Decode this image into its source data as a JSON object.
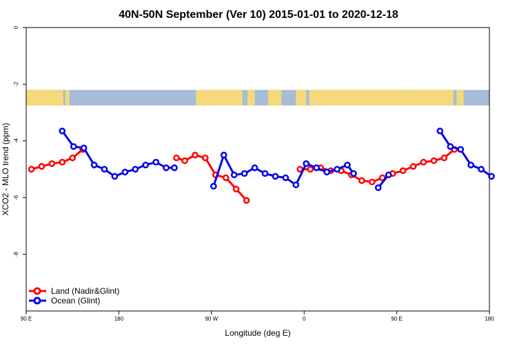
{
  "chart_data": {
    "type": "line",
    "title": "40N-50N September (Ver 10)   2015-01-01 to 2020-12-18",
    "xlabel": "Longitude (deg E)",
    "ylabel": "XCO2 - MLO trend (ppm)",
    "xlim": [
      90,
      540
    ],
    "ylim": [
      -10,
      0
    ],
    "x_ticks": [
      {
        "value": 90,
        "label": "90 E"
      },
      {
        "value": 180,
        "label": "180"
      },
      {
        "value": 270,
        "label": "90 W"
      },
      {
        "value": 360,
        "label": "0"
      },
      {
        "value": 450,
        "label": "90 E"
      },
      {
        "value": 540,
        "label": "180"
      }
    ],
    "y_ticks": [
      {
        "value": 0,
        "label": "0"
      },
      {
        "value": -2,
        "label": "-2"
      },
      {
        "value": -4,
        "label": "-4"
      },
      {
        "value": -6,
        "label": "-6"
      },
      {
        "value": -8,
        "label": "-8"
      }
    ],
    "map_strip": {
      "y_top": -2.2,
      "y_bottom": -2.75,
      "land_color": "#f5d97a",
      "ocean_color": "#a7bcd9"
    },
    "legend_position": "bottom-left",
    "series": [
      {
        "name": "Land (Nadir&Glint)",
        "color": "#ff0000",
        "segments": [
          [
            [
              95,
              -5.0
            ],
            [
              105,
              -4.9
            ],
            [
              115,
              -4.8
            ],
            [
              125,
              -4.75
            ],
            [
              135,
              -4.6
            ],
            [
              145,
              -4.3
            ]
          ],
          [
            [
              236,
              -4.6
            ],
            [
              244,
              -4.7
            ],
            [
              254,
              -4.5
            ],
            [
              264,
              -4.6
            ],
            [
              274,
              -5.2
            ],
            [
              284,
              -5.3
            ],
            [
              294,
              -5.7
            ],
            [
              304,
              -6.1
            ]
          ],
          [
            [
              356,
              -5.0
            ],
            [
              366,
              -5.0
            ],
            [
              376,
              -4.95
            ],
            [
              386,
              -5.05
            ],
            [
              396,
              -5.05
            ],
            [
              406,
              -5.2
            ],
            [
              416,
              -5.4
            ],
            [
              426,
              -5.45
            ],
            [
              436,
              -5.3
            ],
            [
              446,
              -5.15
            ],
            [
              456,
              -5.05
            ],
            [
              466,
              -4.9
            ],
            [
              476,
              -4.75
            ],
            [
              486,
              -4.7
            ],
            [
              496,
              -4.6
            ],
            [
              506,
              -4.3
            ]
          ]
        ]
      },
      {
        "name": "Ocean (Glint)",
        "color": "#0000ee",
        "segments": [
          [
            [
              125,
              -3.65
            ],
            [
              136,
              -4.2
            ],
            [
              146,
              -4.25
            ],
            [
              156,
              -4.85
            ],
            [
              166,
              -5.0
            ],
            [
              176,
              -5.25
            ],
            [
              186,
              -5.1
            ],
            [
              196,
              -5.0
            ],
            [
              206,
              -4.85
            ],
            [
              216,
              -4.75
            ],
            [
              226,
              -4.95
            ],
            [
              234,
              -4.95
            ]
          ],
          [
            [
              272,
              -5.6
            ],
            [
              282,
              -4.5
            ],
            [
              292,
              -5.2
            ],
            [
              302,
              -5.15
            ],
            [
              312,
              -4.95
            ],
            [
              322,
              -5.15
            ],
            [
              332,
              -5.25
            ],
            [
              342,
              -5.3
            ],
            [
              352,
              -5.55
            ],
            [
              362,
              -4.8
            ],
            [
              372,
              -4.95
            ],
            [
              382,
              -5.1
            ],
            [
              392,
              -5.0
            ],
            [
              402,
              -4.85
            ],
            [
              408,
              -5.15
            ]
          ],
          [
            [
              432,
              -5.65
            ],
            [
              442,
              -5.2
            ]
          ],
          [
            [
              492,
              -3.65
            ],
            [
              502,
              -4.2
            ],
            [
              512,
              -4.3
            ],
            [
              522,
              -4.85
            ],
            [
              532,
              -5.0
            ],
            [
              542,
              -5.25
            ]
          ]
        ]
      }
    ]
  }
}
